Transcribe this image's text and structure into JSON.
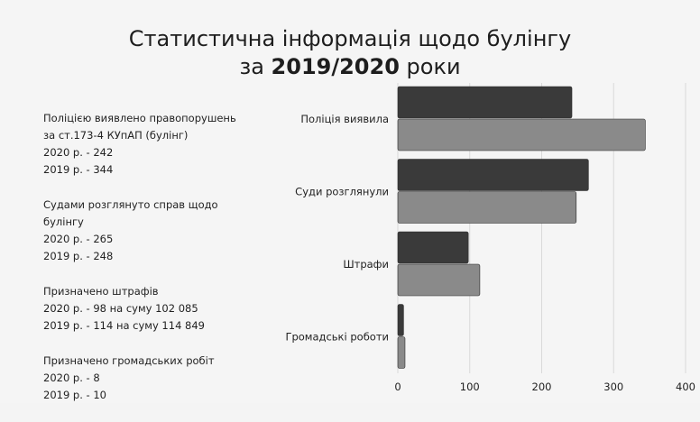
{
  "title": {
    "line1": "Статистична інформація щодо булінгу",
    "line2_prefix": "за ",
    "line2_bold": "2019/2020",
    "line2_suffix": " роки"
  },
  "notes": [
    {
      "lines": [
        "Поліцією виявлено правопорушень",
        "за ст.173-4 КУпАП (булінг)",
        "2020 р. - 242",
        "2019 р. - 344"
      ]
    },
    {
      "lines": [
        "Судами розглянуто справ щодо",
        "булінгу",
        "2020 р. - 265",
        "2019 р. - 248"
      ]
    },
    {
      "lines": [
        "Призначено штрафів",
        "2020 р. - 98 на суму 102 085",
        "2019 р. - 114 на суму 114 849"
      ]
    },
    {
      "lines": [
        "Призначено громадських робіт",
        "2020 р. - 8",
        "2019 р. - 10"
      ]
    }
  ],
  "chart_data": {
    "type": "bar",
    "orientation": "horizontal",
    "categories": [
      "Поліція виявила",
      "Суди розглянули",
      "Штрафи",
      "Громадські роботи"
    ],
    "series": [
      {
        "values": [
          242,
          265,
          98,
          8
        ],
        "color": "#3a3a3a"
      },
      {
        "values": [
          344,
          248,
          114,
          10
        ],
        "color": "#8a8a8a"
      }
    ],
    "xlim": [
      0,
      400
    ],
    "xticks": [
      0,
      100,
      200,
      300,
      400
    ],
    "grid": true
  }
}
